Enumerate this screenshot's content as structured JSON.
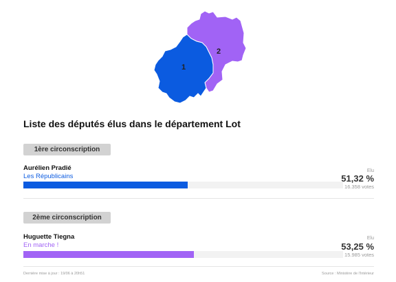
{
  "map": {
    "region1_label": "1",
    "region2_label": "2",
    "region1_color": "#0b5be0",
    "region2_color": "#a163f5"
  },
  "title": "Liste des députés élus dans le département Lot",
  "circonscriptions": [
    {
      "label": "1ère circonscription",
      "name": "Aurélien Pradié",
      "party": "Les Républicains",
      "party_color": "#0b5be0",
      "status": "Elu",
      "percent_text": "51,32 %",
      "percent": 51.32,
      "votes": "16.358 votes"
    },
    {
      "label": "2ème circonscription",
      "name": "Huguette Tiegna",
      "party": "En marche !",
      "party_color": "#a163f5",
      "status": "Elu",
      "percent_text": "53,25 %",
      "percent": 53.25,
      "votes": "15.985 votes"
    }
  ],
  "footer": {
    "updated": "Dernière mise à jour : 19/06 à 20h51",
    "source": "Source : Ministère de l'Intérieur"
  }
}
